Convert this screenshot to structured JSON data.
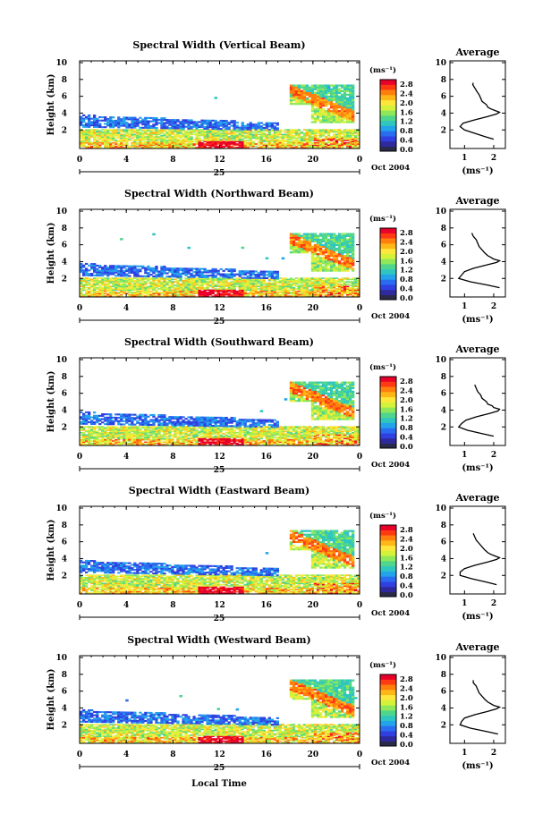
{
  "figure": {
    "footer_xlabel": "Local Time"
  },
  "colorbar": {
    "unit_label": "(ms⁻¹)",
    "tick_labels": [
      "2.8",
      "2.4",
      "2.0",
      "1.6",
      "1.2",
      "0.8",
      "0.4",
      "0.0"
    ],
    "colors": [
      "#e8002a",
      "#ff3a12",
      "#ff7e0c",
      "#ffb617",
      "#ffe63a",
      "#d4f23a",
      "#8ee85a",
      "#4fd58c",
      "#2fc6c0",
      "#22a3ea",
      "#2a6cf0",
      "#2f3fe0",
      "#2e2a9e"
    ]
  },
  "chart_data": [
    {
      "type": "heatmap",
      "title": "Spectral Width (Vertical Beam)",
      "ylabel": "Height (km)",
      "xlim": [
        0,
        24
      ],
      "ylim": [
        0,
        10
      ],
      "xticks": [
        "0",
        "4",
        "8",
        "12",
        "16",
        "20",
        "0"
      ],
      "yticks": [
        "2",
        "4",
        "6",
        "8",
        "10"
      ],
      "date_label": "25",
      "date_suffix": "Oct 2004",
      "profile": {
        "title": "Average",
        "xlabel": "(ms⁻¹)",
        "xticks": [
          "1",
          "2"
        ],
        "xlim": [
          0.5,
          2.4
        ],
        "yticks": [
          "2",
          "4",
          "6",
          "8",
          "10"
        ],
        "ylim": [
          0,
          10
        ],
        "heights": [
          0.9,
          1.2,
          1.6,
          2.0,
          2.4,
          2.8,
          3.2,
          3.6,
          3.9,
          4.1,
          4.3,
          4.5,
          4.7,
          5.0,
          5.4,
          5.8,
          6.2,
          6.6,
          7.0,
          7.4,
          7.6
        ],
        "values": [
          2.0,
          1.7,
          1.35,
          1.0,
          0.85,
          0.95,
          1.35,
          1.8,
          2.1,
          2.2,
          2.05,
          1.9,
          1.8,
          1.75,
          1.6,
          1.55,
          1.5,
          1.42,
          1.35,
          1.28,
          1.3
        ]
      }
    },
    {
      "type": "heatmap",
      "title": "Spectral Width (Northward Beam)",
      "ylabel": "Height (km)",
      "xlim": [
        0,
        24
      ],
      "ylim": [
        0,
        10
      ],
      "xticks": [
        "0",
        "4",
        "8",
        "12",
        "16",
        "20",
        "0"
      ],
      "yticks": [
        "2",
        "4",
        "6",
        "8",
        "10"
      ],
      "date_label": "25",
      "date_suffix": "Oct 2004",
      "profile": {
        "title": "Average",
        "xlabel": "(ms⁻¹)",
        "xticks": [
          "1",
          "2"
        ],
        "xlim": [
          0.5,
          2.4
        ],
        "yticks": [
          "2",
          "4",
          "6",
          "8",
          "10"
        ],
        "ylim": [
          0,
          10
        ],
        "heights": [
          0.9,
          1.2,
          1.6,
          2.0,
          2.4,
          2.8,
          3.2,
          3.6,
          3.9,
          4.1,
          4.3,
          4.5,
          4.7,
          5.0,
          5.4,
          5.8,
          6.2,
          6.6,
          7.0,
          7.4
        ],
        "values": [
          2.2,
          1.8,
          1.2,
          0.8,
          0.9,
          1.0,
          1.3,
          1.75,
          2.1,
          2.2,
          2.0,
          1.9,
          1.8,
          1.7,
          1.6,
          1.5,
          1.45,
          1.4,
          1.3,
          1.25
        ]
      }
    },
    {
      "type": "heatmap",
      "title": "Spectral Width (Southward Beam)",
      "ylabel": "Height (km)",
      "xlim": [
        0,
        24
      ],
      "ylim": [
        0,
        10
      ],
      "xticks": [
        "0",
        "4",
        "8",
        "12",
        "16",
        "20",
        "0"
      ],
      "yticks": [
        "2",
        "4",
        "6",
        "8",
        "10"
      ],
      "date_label": "25",
      "date_suffix": "Oct 2004",
      "profile": {
        "title": "Average",
        "xlabel": "(ms⁻¹)",
        "xticks": [
          "1",
          "2"
        ],
        "xlim": [
          0.5,
          2.4
        ],
        "yticks": [
          "2",
          "4",
          "6",
          "8",
          "10"
        ],
        "ylim": [
          0,
          10
        ],
        "heights": [
          0.9,
          1.2,
          1.6,
          2.0,
          2.4,
          2.8,
          3.2,
          3.6,
          3.9,
          4.1,
          4.3,
          4.5,
          4.7,
          5.0,
          5.4,
          5.8,
          6.2,
          6.6,
          7.0
        ],
        "values": [
          2.0,
          1.6,
          1.1,
          0.8,
          0.9,
          1.05,
          1.4,
          1.85,
          2.15,
          2.2,
          2.0,
          1.95,
          1.8,
          1.75,
          1.6,
          1.55,
          1.45,
          1.4,
          1.35
        ]
      }
    },
    {
      "type": "heatmap",
      "title": "Spectral Width (Eastward Beam)",
      "ylabel": "Height (km)",
      "xlim": [
        0,
        24
      ],
      "ylim": [
        0,
        10
      ],
      "xticks": [
        "0",
        "4",
        "8",
        "12",
        "16",
        "20",
        "0"
      ],
      "yticks": [
        "2",
        "4",
        "6",
        "8",
        "10"
      ],
      "date_label": "25",
      "date_suffix": "Oct 2004",
      "profile": {
        "title": "Average",
        "xlabel": "(ms⁻¹)",
        "xticks": [
          "1",
          "2"
        ],
        "xlim": [
          0.5,
          2.4
        ],
        "yticks": [
          "2",
          "4",
          "6",
          "8",
          "10"
        ],
        "ylim": [
          0,
          10
        ],
        "heights": [
          0.9,
          1.2,
          1.6,
          2.0,
          2.4,
          2.8,
          3.2,
          3.6,
          3.9,
          4.1,
          4.3,
          4.5,
          4.7,
          5.0,
          5.4,
          5.8,
          6.2,
          6.6,
          7.0
        ],
        "values": [
          2.1,
          1.75,
          1.25,
          0.85,
          0.85,
          1.0,
          1.35,
          1.8,
          2.1,
          2.2,
          2.05,
          1.9,
          1.8,
          1.7,
          1.6,
          1.5,
          1.4,
          1.35,
          1.3
        ]
      }
    },
    {
      "type": "heatmap",
      "title": "Spectral Width (Westward Beam)",
      "ylabel": "Height (km)",
      "xlim": [
        0,
        24
      ],
      "ylim": [
        0,
        10
      ],
      "xticks": [
        "0",
        "4",
        "8",
        "12",
        "16",
        "20",
        "0"
      ],
      "yticks": [
        "2",
        "4",
        "6",
        "8",
        "10"
      ],
      "date_label": "25",
      "date_suffix": "Oct 2004",
      "profile": {
        "title": "Average",
        "xlabel": "(ms⁻¹)",
        "xticks": [
          "1",
          "2"
        ],
        "xlim": [
          0.5,
          2.4
        ],
        "yticks": [
          "2",
          "4",
          "6",
          "8",
          "10"
        ],
        "ylim": [
          0,
          10
        ],
        "heights": [
          0.9,
          1.2,
          1.6,
          2.0,
          2.4,
          2.8,
          3.2,
          3.6,
          3.9,
          4.1,
          4.3,
          4.5,
          4.7,
          5.0,
          5.4,
          5.8,
          6.2,
          6.6,
          7.0,
          7.3
        ],
        "values": [
          2.15,
          1.75,
          1.2,
          0.85,
          0.9,
          1.0,
          1.35,
          1.8,
          2.1,
          2.2,
          2.0,
          1.9,
          1.8,
          1.7,
          1.6,
          1.5,
          1.45,
          1.4,
          1.3,
          1.3
        ]
      }
    }
  ]
}
